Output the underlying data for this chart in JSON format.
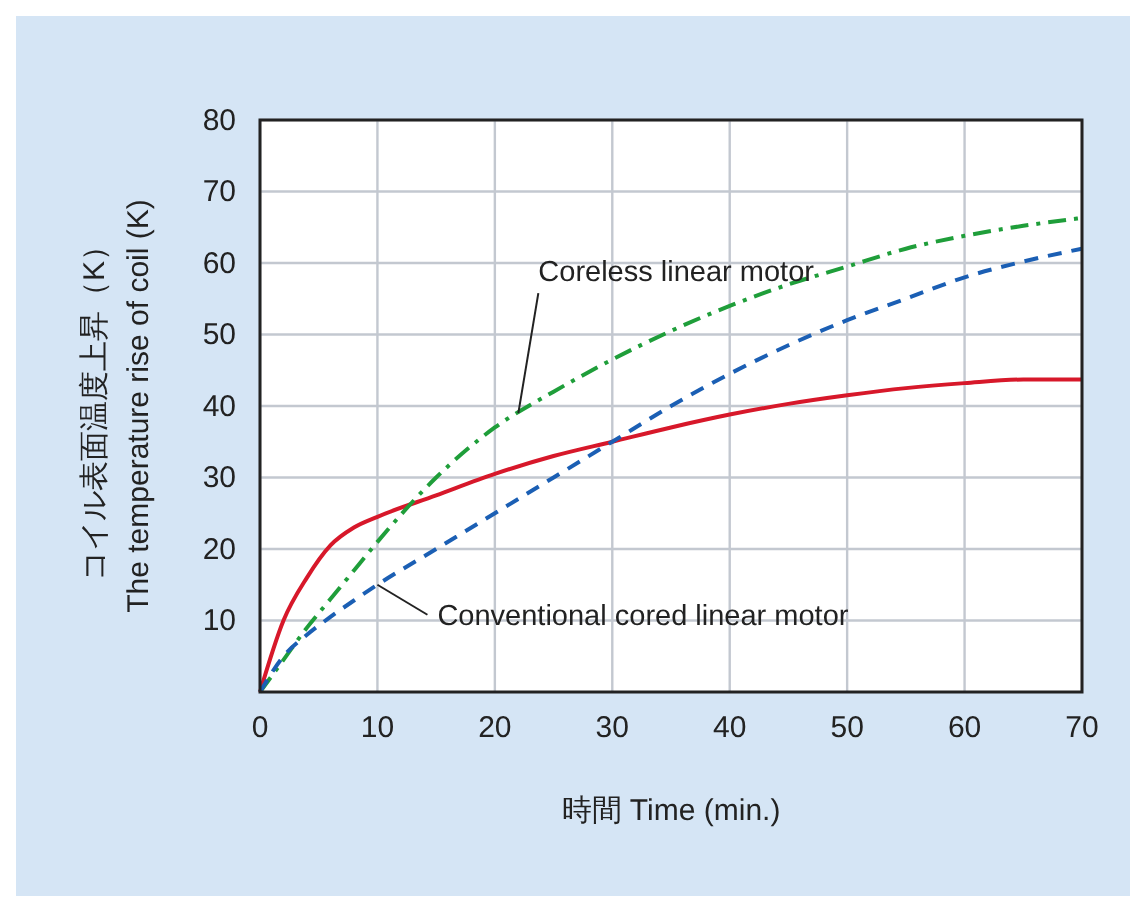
{
  "chart_data": {
    "type": "line",
    "xlabel": "時間 Time (min.)",
    "ylabel": "コイル表面温度上昇（K）\nThe temperature rise of coil (K)",
    "x": [
      0,
      2,
      4,
      6,
      8,
      10,
      15,
      20,
      25,
      30,
      35,
      40,
      45,
      50,
      55,
      60,
      65,
      70
    ],
    "series": [
      {
        "color": "#d7182a",
        "line_style": "solid",
        "values": [
          0,
          10,
          16,
          20.5,
          23,
          24.5,
          27.5,
          30.5,
          33,
          35,
          37,
          38.8,
          40.3,
          41.5,
          42.5,
          43.2,
          43.7,
          43.7
        ]
      },
      {
        "color": "#1f9e3a",
        "line_style": "dashdot",
        "values": [
          0,
          4.5,
          9,
          13,
          17,
          21,
          30,
          37,
          42,
          46.5,
          50.5,
          54,
          57,
          59.5,
          62,
          63.8,
          65.2,
          66.3
        ]
      },
      {
        "color": "#1b5fb4",
        "line_style": "dashed",
        "values": [
          0,
          5,
          8,
          10.5,
          12.8,
          15,
          20,
          25,
          30,
          35,
          40,
          44.5,
          48.5,
          52,
          55,
          58,
          60.2,
          62
        ]
      }
    ],
    "annotations": [
      {
        "text": "Coreless linear motor",
        "x": 22,
        "y": 39
      },
      {
        "text": "Conventional cored linear motor",
        "x": 10,
        "y": 15
      }
    ],
    "xlim": [
      0,
      70
    ],
    "xticks": [
      0,
      10,
      20,
      30,
      40,
      50,
      60,
      70
    ],
    "ylim": [
      0,
      80
    ],
    "yticks": [
      10,
      20,
      30,
      40,
      50,
      60,
      70,
      80
    ],
    "grid": true,
    "marker": "none"
  }
}
